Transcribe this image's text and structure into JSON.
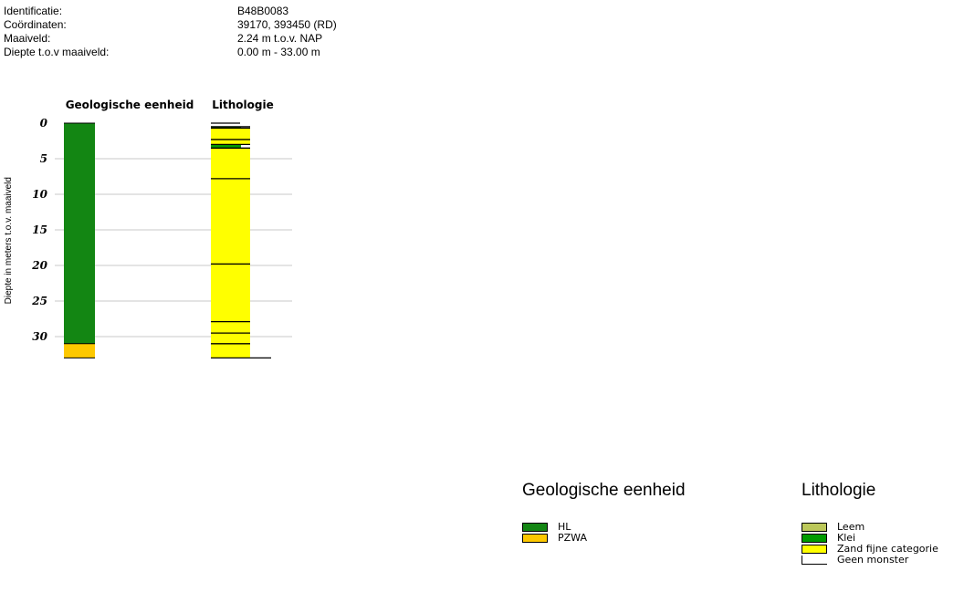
{
  "info": [
    {
      "label": "Identificatie:",
      "value": "B48B0083"
    },
    {
      "label": "Coördinaten:",
      "value": "39170, 393450 (RD)"
    },
    {
      "label": "Maaiveld:",
      "value": "2.24 m t.o.v. NAP"
    },
    {
      "label": "Diepte t.o.v maaiveld:",
      "value": "0.00 m - 33.00 m"
    }
  ],
  "colors": {
    "HL": "#138613",
    "PZWA": "#fdc800",
    "Leem": "#bcc85a",
    "Klei": "#009b00",
    "Zand fijne categorie": "#ffff00",
    "Geen monster": "#ffffff",
    "grid": "#c8c8c8"
  },
  "chart_data": {
    "type": "table",
    "ylabel": "Diepte in meters t.o.v. maaiveld",
    "ylim": [
      0,
      33
    ],
    "yticks": [
      0,
      5,
      10,
      15,
      20,
      25,
      30
    ],
    "grid": true,
    "columns": [
      {
        "title": "Geologische eenheid",
        "intervals": [
          {
            "top": 0.0,
            "bottom": 31.0,
            "unit": "HL"
          },
          {
            "top": 31.0,
            "bottom": 33.0,
            "unit": "PZWA"
          }
        ]
      },
      {
        "title": "Lithologie",
        "intervals": [
          {
            "top": 0.0,
            "bottom": 0.5,
            "unit": "Geen monster"
          },
          {
            "top": 0.5,
            "bottom": 0.7,
            "unit": "Klei"
          },
          {
            "top": 0.7,
            "bottom": 3.0,
            "unit": "Zand fijne categorie"
          },
          {
            "top": 3.0,
            "bottom": 3.5,
            "unit": "Klei"
          },
          {
            "top": 3.5,
            "bottom": 33.0,
            "unit": "Zand fijne categorie"
          }
        ],
        "boundaries": [
          2.3,
          7.8,
          19.8,
          27.9,
          29.5,
          31.0
        ]
      }
    ]
  },
  "legends": [
    {
      "title": "Geologische eenheid",
      "items": [
        "HL",
        "PZWA"
      ]
    },
    {
      "title": "Lithologie",
      "items": [
        "Leem",
        "Klei",
        "Zand fijne categorie",
        "Geen monster"
      ]
    }
  ]
}
